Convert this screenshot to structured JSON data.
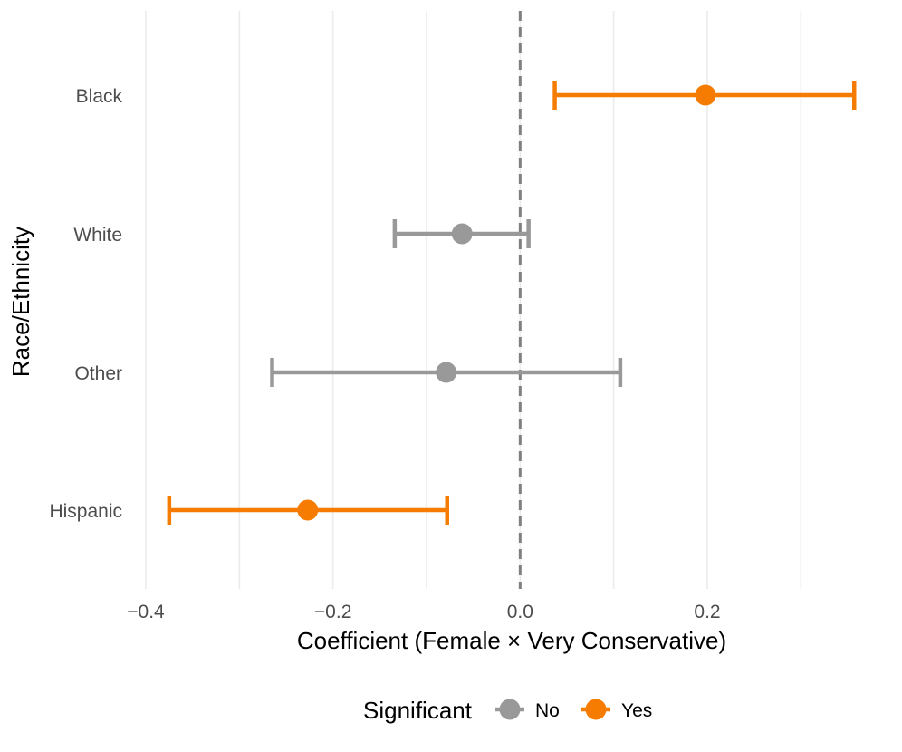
{
  "chart_data": {
    "type": "scatter",
    "subtype": "coefficient-plot-with-error-bars",
    "xlabel": "Coefficient (Female × Very Conservative)",
    "ylabel": "Race/Ethnicity",
    "xlim": [
      -0.415,
      0.365
    ],
    "x_ticks": [
      -0.4,
      -0.2,
      0.0,
      0.2
    ],
    "x_tick_labels": [
      "−0.4",
      "−0.2",
      "0.0",
      "0.2"
    ],
    "reference_line": 0.0,
    "grid": "vertical",
    "categories": [
      "Black",
      "White",
      "Other",
      "Hispanic"
    ],
    "points": [
      {
        "category": "Black",
        "estimate": 0.198,
        "low": 0.037,
        "high": 0.357,
        "significant": "Yes"
      },
      {
        "category": "White",
        "estimate": -0.062,
        "low": -0.134,
        "high": 0.009,
        "significant": "No"
      },
      {
        "category": "Other",
        "estimate": -0.079,
        "low": -0.265,
        "high": 0.107,
        "significant": "No"
      },
      {
        "category": "Hispanic",
        "estimate": -0.227,
        "low": -0.375,
        "high": -0.078,
        "significant": "Yes"
      }
    ],
    "legend": {
      "title": "Significant",
      "position": "bottom",
      "entries": [
        {
          "label": "No",
          "color": "#999999"
        },
        {
          "label": "Yes",
          "color": "#f57c00"
        }
      ]
    }
  }
}
